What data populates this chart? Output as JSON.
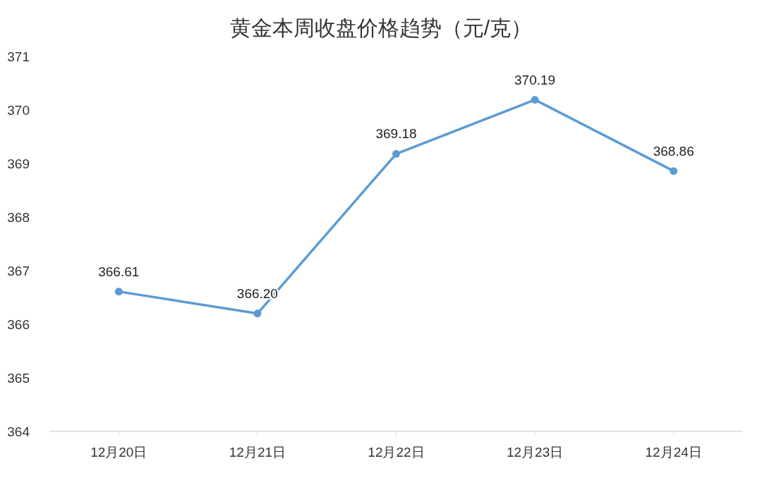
{
  "chart_data": {
    "type": "line",
    "title": "黄金本周收盘价格趋势（元/克）",
    "categories": [
      "12月20日",
      "12月21日",
      "12月22日",
      "12月23日",
      "12月24日"
    ],
    "series": [
      {
        "color": "#5b9bd5",
        "values": [
          366.61,
          366.2,
          369.18,
          370.19,
          368.86
        ]
      }
    ],
    "ylim": [
      364,
      371
    ],
    "yticks": [
      364,
      365,
      366,
      367,
      368,
      369,
      370,
      371
    ],
    "value_labels": [
      "366.61",
      "366.20",
      "369.18",
      "370.19",
      "368.86"
    ],
    "marker": "circle",
    "line_style": "solid"
  }
}
